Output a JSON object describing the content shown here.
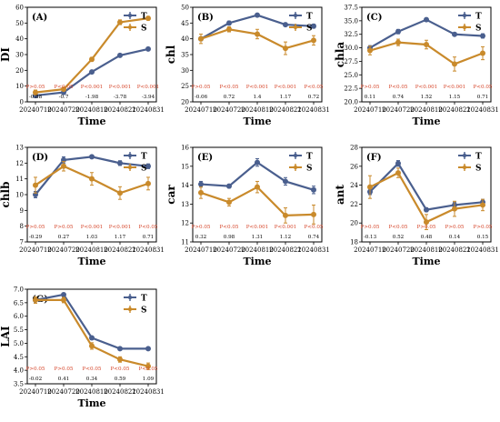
{
  "colors": {
    "T": "#4a5f8e",
    "S": "#c98a2b",
    "p_text": "#d6452a"
  },
  "chart_data": [
    {
      "type": "line",
      "panel_label": "(A)",
      "ylabel": "DI",
      "xlabel": "Time",
      "x": [
        "20240710",
        "20240720",
        "20240810",
        "20240821",
        "20240831"
      ],
      "ylim": [
        0,
        60
      ],
      "yticks": [
        0,
        10,
        20,
        30,
        40,
        50,
        60
      ],
      "series": [
        {
          "name": "T",
          "values": [
            4,
            6,
            19,
            29.5,
            33.5
          ],
          "errors": [
            0.3,
            0.4,
            0.8,
            0.8,
            0.6
          ]
        },
        {
          "name": "S",
          "values": [
            6,
            8,
            27,
            50.5,
            53
          ],
          "errors": [
            1.5,
            0.8,
            1.2,
            1.5,
            1.2
          ]
        }
      ],
      "p_values": [
        "P>0.05",
        "P<0.05",
        "P<0.001",
        "P<0.001",
        "P<0.001"
      ],
      "d_values": [
        "-0.88",
        "-0.7",
        "-1.98",
        "-3.78",
        "-3.94"
      ],
      "legend": "top-right"
    },
    {
      "type": "line",
      "panel_label": "(B)",
      "ylabel": "chl",
      "xlabel": "Time",
      "x": [
        "20240710",
        "20240720",
        "20240810",
        "20240821",
        "20240831"
      ],
      "ylim": [
        20,
        50
      ],
      "yticks": [
        20,
        25,
        30,
        35,
        40,
        45,
        50
      ],
      "series": [
        {
          "name": "T",
          "values": [
            40,
            45,
            47.5,
            44.5,
            44
          ],
          "errors": [
            0.6,
            0.6,
            0.5,
            0.5,
            0.6
          ]
        },
        {
          "name": "S",
          "values": [
            40,
            43,
            41.5,
            37,
            39.5
          ],
          "errors": [
            1.5,
            0.8,
            1.5,
            2,
            1.5
          ]
        }
      ],
      "p_values": [
        "P>0.05",
        "P<0.05",
        "P<0.001",
        "P<0.001",
        "P<0.05"
      ],
      "d_values": [
        "-0.06",
        "0.72",
        "1.4",
        "1.17",
        "0.72"
      ],
      "legend": "top-right"
    },
    {
      "type": "line",
      "panel_label": "(C)",
      "ylabel": "chla",
      "xlabel": "Time",
      "x": [
        "20240710",
        "20240720",
        "20240810",
        "20240821",
        "20240831"
      ],
      "ylim": [
        20,
        37.5
      ],
      "yticks": [
        20.0,
        22.5,
        25.0,
        27.5,
        30.0,
        32.5,
        35.0,
        37.5
      ],
      "series": [
        {
          "name": "T",
          "values": [
            30,
            33,
            35.2,
            32.5,
            32.2
          ],
          "errors": [
            0.4,
            0.4,
            0.3,
            0.3,
            0.4
          ]
        },
        {
          "name": "S",
          "values": [
            29.5,
            31,
            30.6,
            27,
            29
          ],
          "errors": [
            0.8,
            0.6,
            0.8,
            1.3,
            1.2
          ]
        }
      ],
      "p_values": [
        "P>0.05",
        "P<0.05",
        "P<0.001",
        "P<0.001",
        "P<0.05"
      ],
      "d_values": [
        "0.11",
        "0.74",
        "1.52",
        "1.15",
        "0.71"
      ],
      "legend": "top-right"
    },
    {
      "type": "line",
      "panel_label": "(D)",
      "ylabel": "chlb",
      "xlabel": "Time",
      "x": [
        "20240710",
        "20240720",
        "20240810",
        "20240821",
        "20240831"
      ],
      "ylim": [
        7,
        13
      ],
      "yticks": [
        7,
        8,
        9,
        10,
        11,
        12,
        13
      ],
      "series": [
        {
          "name": "T",
          "values": [
            10,
            12.2,
            12.4,
            12,
            11.8
          ],
          "errors": [
            0.2,
            0.2,
            0.1,
            0.15,
            0.15
          ]
        },
        {
          "name": "S",
          "values": [
            10.6,
            11.8,
            11,
            10.1,
            10.7
          ],
          "errors": [
            0.5,
            0.3,
            0.4,
            0.4,
            0.4
          ]
        }
      ],
      "p_values": [
        "P>0.05",
        "P>0.05",
        "P<0.001",
        "P<0.001",
        "P<0.05"
      ],
      "d_values": [
        "-0.29",
        "0.27",
        "1.03",
        "1.17",
        "0.71"
      ],
      "legend": "top-right"
    },
    {
      "type": "line",
      "panel_label": "(E)",
      "ylabel": "car",
      "xlabel": "Time",
      "x": [
        "20240710",
        "20240720",
        "20240810",
        "20240821",
        "20240831"
      ],
      "ylim": [
        11,
        16
      ],
      "yticks": [
        11,
        12,
        13,
        14,
        15,
        16
      ],
      "series": [
        {
          "name": "T",
          "values": [
            14.05,
            13.95,
            15.2,
            14.2,
            13.75
          ],
          "errors": [
            0.15,
            0.1,
            0.2,
            0.2,
            0.2
          ]
        },
        {
          "name": "S",
          "values": [
            13.6,
            13.1,
            13.9,
            12.4,
            12.45
          ],
          "errors": [
            0.3,
            0.2,
            0.3,
            0.4,
            0.5
          ]
        }
      ],
      "p_values": [
        "P>0.05",
        "P<0.05",
        "P<0.001",
        "P<0.001",
        "P<0.05"
      ],
      "d_values": [
        "0.32",
        "0.98",
        "1.31",
        "1.12",
        "0.74"
      ],
      "legend": "top-right"
    },
    {
      "type": "line",
      "panel_label": "(F)",
      "ylabel": "ant",
      "xlabel": "Time",
      "x": [
        "20240710",
        "20240720",
        "20240810",
        "20240821",
        "20240831"
      ],
      "ylim": [
        18,
        28
      ],
      "yticks": [
        18,
        20,
        22,
        24,
        26,
        28
      ],
      "series": [
        {
          "name": "T",
          "values": [
            23.3,
            26.3,
            21.4,
            21.9,
            22.2
          ],
          "errors": [
            0.3,
            0.3,
            0.2,
            0.3,
            0.3
          ]
        },
        {
          "name": "S",
          "values": [
            23.8,
            25.3,
            20.1,
            21.5,
            21.9
          ],
          "errors": [
            1.2,
            0.5,
            0.8,
            0.8,
            0.6
          ]
        }
      ],
      "p_values": [
        "P>0.05",
        "P<0.05",
        "P>0.05",
        "P>0.05",
        "P>0.05"
      ],
      "d_values": [
        "-0.13",
        "0.52",
        "0.48",
        "0.14",
        "0.15"
      ],
      "legend": "top-right"
    },
    {
      "type": "line",
      "panel_label": "(G)",
      "ylabel": "LAI",
      "xlabel": "Time",
      "x": [
        "20240710",
        "20240720",
        "20240810",
        "20240821",
        "20240831"
      ],
      "ylim": [
        3.5,
        7.0
      ],
      "yticks": [
        3.5,
        4.0,
        4.5,
        5.0,
        5.5,
        6.0,
        6.5,
        7.0
      ],
      "series": [
        {
          "name": "T",
          "values": [
            6.6,
            6.8,
            5.2,
            4.8,
            4.8
          ],
          "errors": [
            0.05,
            0.05,
            0.05,
            0.05,
            0.05
          ]
        },
        {
          "name": "S",
          "values": [
            6.6,
            6.6,
            4.9,
            4.4,
            4.15
          ],
          "errors": [
            0.12,
            0.1,
            0.12,
            0.1,
            0.12
          ]
        }
      ],
      "p_values": [
        "P>0.05",
        "P>0.05",
        "P<0.05",
        "P<0.05",
        "P<0.05"
      ],
      "d_values": [
        "-0.02",
        "0.41",
        "0.34",
        "0.59",
        "1.09"
      ],
      "legend": "top-right"
    }
  ]
}
